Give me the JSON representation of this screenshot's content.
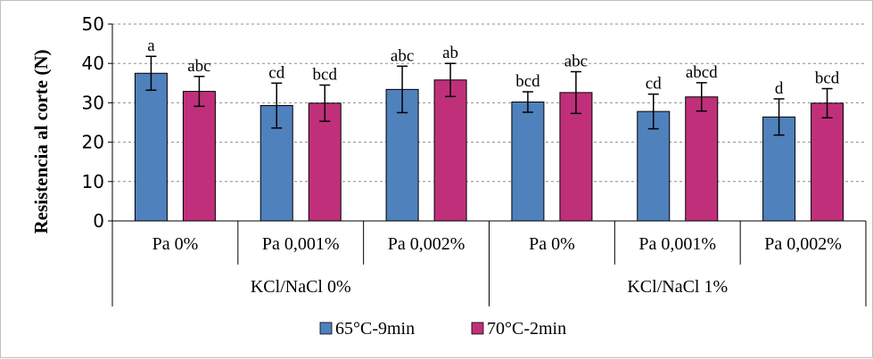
{
  "chart_data": {
    "type": "bar",
    "title": "",
    "ylabel": "Resistencia al corte (N)",
    "xlabel": "",
    "ylim": [
      0,
      50
    ],
    "yticks": [
      0,
      10,
      20,
      30,
      40,
      50
    ],
    "grid": "horizontal dashed",
    "legend_position": "bottom",
    "groups": [
      {
        "label": "KCl/NaCl 0%",
        "categories": [
          "Pa 0%",
          "Pa 0,001%",
          "Pa 0,002%"
        ]
      },
      {
        "label": "KCl/NaCl 1%",
        "categories": [
          "Pa 0%",
          "Pa 0,001%",
          "Pa 0,002%"
        ]
      }
    ],
    "categories": [
      "Pa 0%",
      "Pa 0,001%",
      "Pa 0,002%",
      "Pa 0%",
      "Pa 0,001%",
      "Pa 0,002%"
    ],
    "series": [
      {
        "name": "65°C-9min",
        "color": "#4f81bd",
        "values": [
          37.5,
          29.3,
          33.4,
          30.2,
          27.8,
          26.4
        ],
        "errors": [
          4.3,
          5.7,
          5.9,
          2.6,
          4.4,
          4.6
        ],
        "labels": [
          "a",
          "cd",
          "abc",
          "bcd",
          "cd",
          "d"
        ]
      },
      {
        "name": "70°C-2min",
        "color": "#c0307a",
        "values": [
          32.9,
          29.9,
          35.8,
          32.6,
          31.5,
          29.9
        ],
        "errors": [
          3.8,
          4.6,
          4.2,
          5.3,
          3.6,
          3.7
        ],
        "labels": [
          "abc",
          "bcd",
          "ab",
          "abc",
          "abcd",
          "bcd"
        ]
      }
    ]
  }
}
